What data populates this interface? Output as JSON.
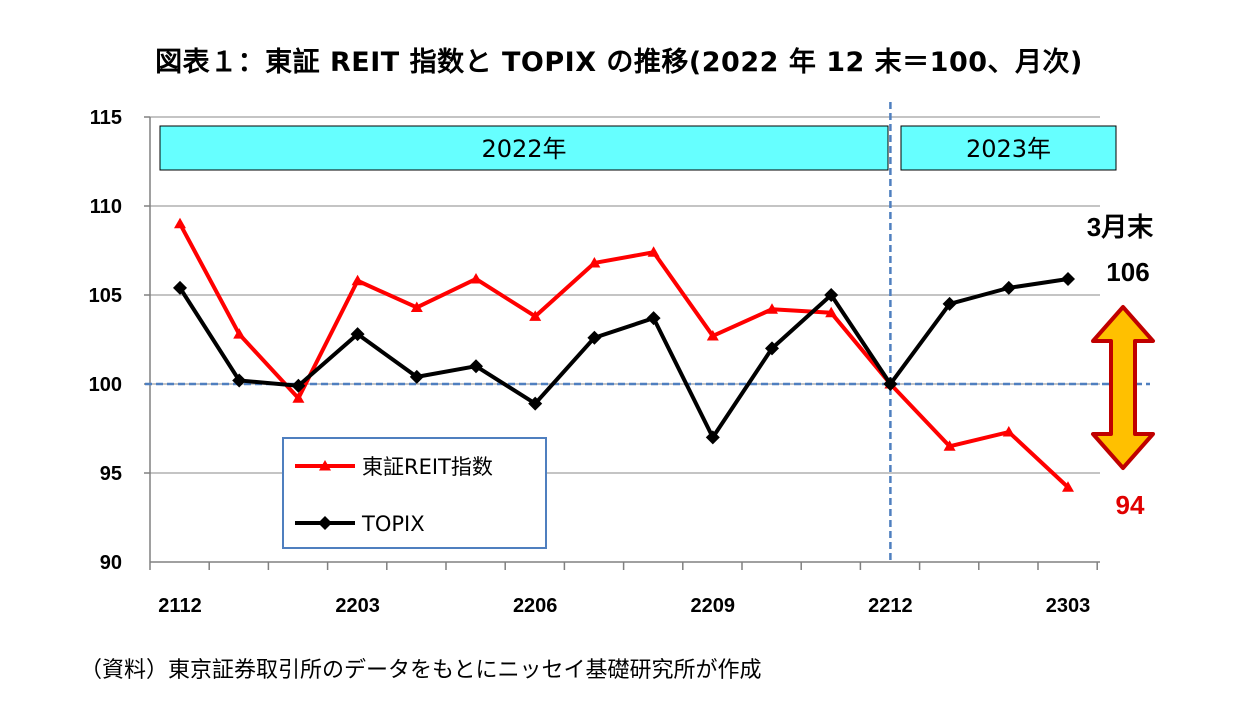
{
  "title": "図表１：東証 REIT 指数と TOPIX の推移(2022 年 12 末＝100、月次)",
  "source_note": "（資料）東京証券取引所のデータをもとにニッセイ基礎研究所が作成",
  "chart_data": {
    "type": "line",
    "x": [
      "2112",
      "2201",
      "2202",
      "2203",
      "2204",
      "2205",
      "2206",
      "2207",
      "2208",
      "2209",
      "2210",
      "2211",
      "2212",
      "2301",
      "2302",
      "2303"
    ],
    "x_tick_labels": [
      "2112",
      "2203",
      "2206",
      "2209",
      "2212",
      "2303"
    ],
    "ylim": [
      90,
      115
    ],
    "y_ticks": [
      90,
      95,
      100,
      105,
      110,
      115
    ],
    "grid": true,
    "reference_line": 100,
    "periods": [
      {
        "label": "2022年",
        "from": "2112",
        "to": "2212"
      },
      {
        "label": "2023年",
        "from": "2212",
        "to": "2303"
      }
    ],
    "series": [
      {
        "name": "東証REIT指数",
        "color": "#ff0000",
        "marker": "triangle",
        "values": [
          109.0,
          102.8,
          99.2,
          105.8,
          104.3,
          105.9,
          103.8,
          106.8,
          107.4,
          102.7,
          104.2,
          104.0,
          100.0,
          96.5,
          97.3,
          94.2
        ]
      },
      {
        "name": "TOPIX",
        "color": "#000000",
        "marker": "diamond",
        "values": [
          105.4,
          100.2,
          99.9,
          102.8,
          100.4,
          101.0,
          98.9,
          102.6,
          103.7,
          97.0,
          102.0,
          105.0,
          100.0,
          104.5,
          105.4,
          105.9
        ]
      }
    ],
    "annotations": {
      "period_end_label": "3月末",
      "topix_end_value": "106",
      "reit_end_value": "94",
      "topix_value_color": "#000000",
      "reit_value_color": "#e00000",
      "gap_arrow_fill": "#ffc000",
      "gap_arrow_stroke": "#c00000"
    },
    "legend_position": "bottom-left"
  },
  "colors": {
    "period_band_fill": "#66ffff",
    "dashed_line": "#4f7fbf",
    "legend_border": "#4f7fbf",
    "grid": "#b0b0b0"
  }
}
